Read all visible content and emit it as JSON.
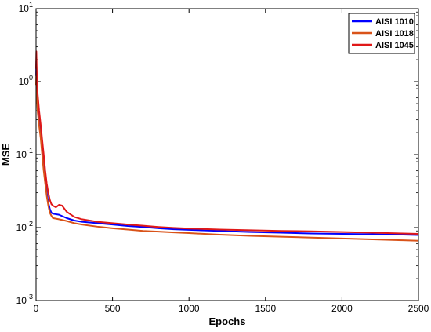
{
  "chart_data": {
    "type": "line",
    "xlabel": "Epochs",
    "ylabel": "MSE",
    "xlim": [
      0,
      2500
    ],
    "ylim": [
      0.001,
      10
    ],
    "yscale": "log",
    "x_ticks": [
      {
        "value": 0,
        "label": "0"
      },
      {
        "value": 500,
        "label": "500"
      },
      {
        "value": 1000,
        "label": "1000"
      },
      {
        "value": 1500,
        "label": "1500"
      },
      {
        "value": 2000,
        "label": "2000"
      },
      {
        "value": 2500,
        "label": "2500"
      }
    ],
    "y_ticks": [
      {
        "value": 10,
        "base": "10",
        "exp": "1"
      },
      {
        "value": 1,
        "base": "10",
        "exp": "0"
      },
      {
        "value": 0.1,
        "base": "10",
        "exp": "-1"
      },
      {
        "value": 0.01,
        "base": "10",
        "exp": "-2"
      },
      {
        "value": 0.001,
        "base": "10",
        "exp": "-3"
      }
    ],
    "grid": false,
    "legend_position": "top-right",
    "series": [
      {
        "name": "AISI 1010",
        "color": "#0000ff",
        "x": [
          0,
          2,
          5,
          10,
          20,
          30,
          40,
          50,
          60,
          70,
          80,
          90,
          100,
          110,
          150,
          200,
          250,
          300,
          400,
          500,
          600,
          700,
          800,
          900,
          1000,
          1200,
          1400,
          1600,
          1800,
          2000,
          2200,
          2400,
          2500
        ],
        "y": [
          1.2,
          1.9,
          0.9,
          0.5,
          0.3,
          0.2,
          0.12,
          0.07,
          0.045,
          0.03,
          0.022,
          0.018,
          0.016,
          0.0155,
          0.015,
          0.0135,
          0.0125,
          0.012,
          0.0115,
          0.011,
          0.0105,
          0.0102,
          0.0098,
          0.0095,
          0.0093,
          0.009,
          0.0087,
          0.0085,
          0.0083,
          0.0082,
          0.0081,
          0.008,
          0.0079
        ]
      },
      {
        "name": "AISI 1018",
        "color": "#d95319",
        "x": [
          0,
          2,
          5,
          10,
          20,
          30,
          40,
          50,
          60,
          70,
          80,
          90,
          100,
          110,
          150,
          200,
          250,
          300,
          400,
          500,
          600,
          700,
          800,
          900,
          1000,
          1200,
          1400,
          1600,
          1800,
          2000,
          2200,
          2400,
          2500
        ],
        "y": [
          0.9,
          1.5,
          0.7,
          0.4,
          0.25,
          0.17,
          0.1,
          0.06,
          0.04,
          0.027,
          0.02,
          0.016,
          0.0145,
          0.0135,
          0.013,
          0.0123,
          0.0115,
          0.011,
          0.0103,
          0.0098,
          0.0094,
          0.009,
          0.0088,
          0.0086,
          0.0084,
          0.008,
          0.0077,
          0.0075,
          0.0073,
          0.0071,
          0.0069,
          0.0067,
          0.0066
        ]
      },
      {
        "name": "AISI 1045",
        "color": "#e01818",
        "x": [
          0,
          2,
          5,
          10,
          20,
          30,
          40,
          50,
          60,
          70,
          80,
          90,
          100,
          110,
          130,
          150,
          170,
          200,
          250,
          300,
          400,
          500,
          600,
          700,
          800,
          900,
          1000,
          1200,
          1400,
          1600,
          1800,
          2000,
          2200,
          2400,
          2500
        ],
        "y": [
          1.5,
          2.6,
          1.3,
          0.7,
          0.4,
          0.26,
          0.16,
          0.1,
          0.06,
          0.04,
          0.03,
          0.024,
          0.021,
          0.02,
          0.019,
          0.0205,
          0.02,
          0.0165,
          0.014,
          0.013,
          0.012,
          0.0115,
          0.011,
          0.0106,
          0.0102,
          0.0099,
          0.0097,
          0.0094,
          0.0092,
          0.009,
          0.0089,
          0.0087,
          0.0085,
          0.0083,
          0.0082
        ]
      }
    ]
  }
}
